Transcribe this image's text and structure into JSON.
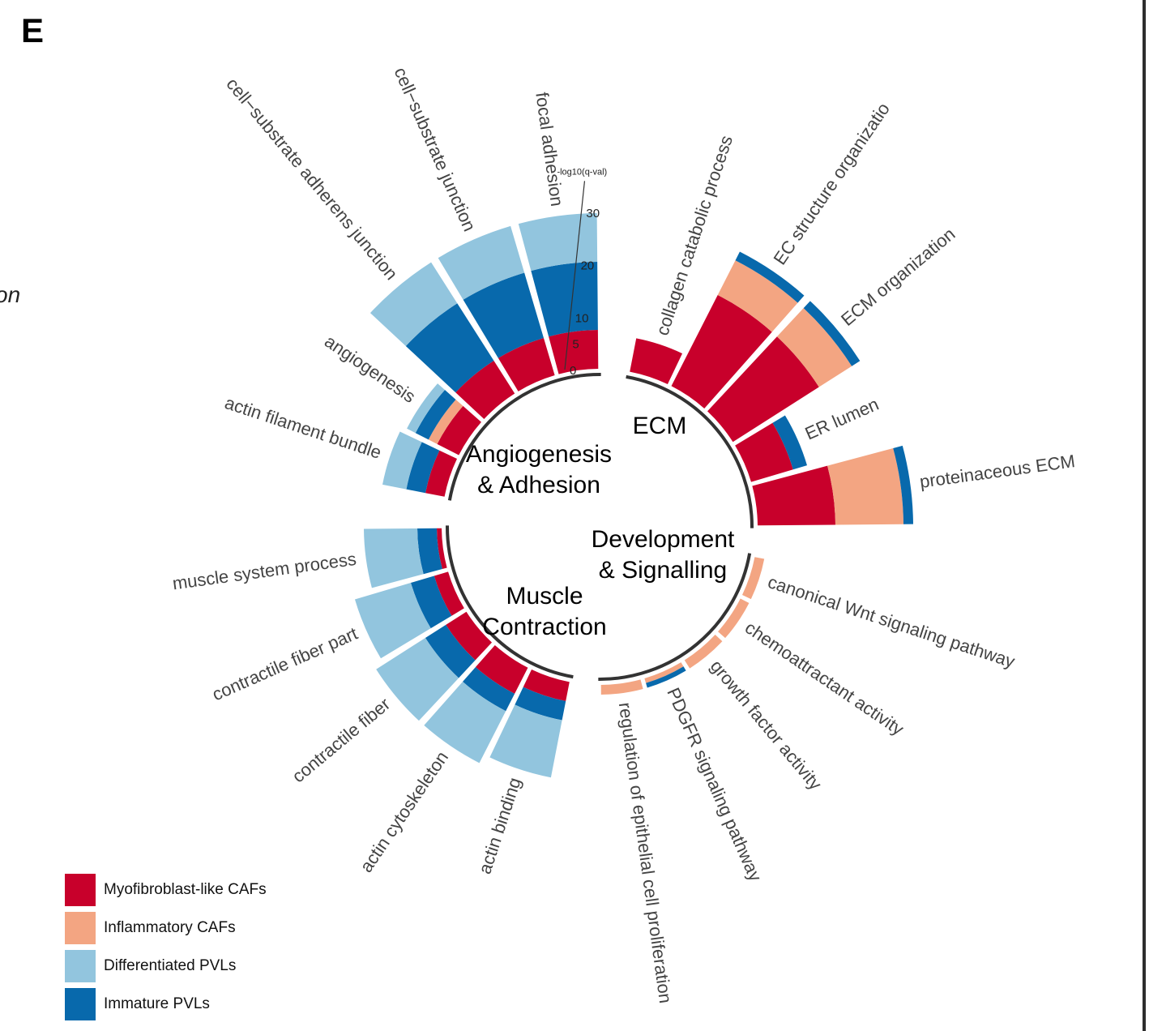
{
  "panel_label": "E",
  "clipped_left_text": "on",
  "colors": {
    "myofibroblast": "#c8002b",
    "inflammatory": "#f3a582",
    "differentiated": "#92c5de",
    "immature": "#0869ac",
    "text": "#444444",
    "arc": "#333333"
  },
  "legend": [
    {
      "label": "Myofibroblast-like CAFs",
      "color": "#c8002b"
    },
    {
      "label": "Inflammatory CAFs",
      "color": "#f3a582"
    },
    {
      "label": "Differentiated PVLs",
      "color": "#92c5de"
    },
    {
      "label": "Immature PVLs",
      "color": "#0869ac"
    }
  ],
  "chart_data": {
    "type": "circular stacked bar",
    "axis": {
      "label": "-log10(q-val)",
      "ticks": [
        0,
        5,
        10,
        20,
        30
      ]
    },
    "series": [
      {
        "name": "Myofibroblast-like CAFs",
        "key": "myo"
      },
      {
        "name": "Inflammatory CAFs",
        "key": "infl"
      },
      {
        "name": "Immature PVLs",
        "key": "imm"
      },
      {
        "name": "Differentiated PVLs",
        "key": "diff"
      }
    ],
    "groups": [
      {
        "label_lines": [
          "Angiogenesis",
          "& Adhesion"
        ],
        "bars": [
          {
            "term": "actin filament bundle",
            "myo": 4,
            "infl": 0,
            "imm": 4,
            "diff": 5
          },
          {
            "term": "angiogenesis",
            "myo": 5,
            "infl": 2,
            "imm": 3,
            "diff": 2
          },
          {
            "term": "cell−substrate adherens junction",
            "myo": 8,
            "infl": 0,
            "imm": 14,
            "diff": 10
          },
          {
            "term": "cell−substrate junction",
            "myo": 8,
            "infl": 0,
            "imm": 14,
            "diff": 10
          },
          {
            "term": "focal adhesion",
            "myo": 8,
            "infl": 0,
            "imm": 14,
            "diff": 10
          }
        ]
      },
      {
        "label_lines": [
          "ECM"
        ],
        "bars": [
          {
            "term": "collagen catabolic process",
            "myo": 7,
            "infl": 0,
            "imm": 0,
            "diff": 0
          },
          {
            "term": "EC structure organizatio",
            "myo": 21,
            "infl": 8,
            "imm": 2,
            "diff": 0
          },
          {
            "term": "ECM organization",
            "myo": 21,
            "infl": 8,
            "imm": 2,
            "diff": 0
          },
          {
            "term": "ER lumen",
            "myo": 9,
            "infl": 0,
            "imm": 3,
            "diff": 0
          },
          {
            "term": "proteinaceous ECM",
            "myo": 16,
            "infl": 14,
            "imm": 2,
            "diff": 0
          }
        ]
      },
      {
        "label_lines": [
          "Development",
          "& Signalling"
        ],
        "bars": [
          {
            "term": "canonical Wnt signaling pathway",
            "myo": 0,
            "infl": 2,
            "imm": 0,
            "diff": 0
          },
          {
            "term": "chemoattractant activity",
            "myo": 0,
            "infl": 2,
            "imm": 0,
            "diff": 0
          },
          {
            "term": "growth factor activity",
            "myo": 0,
            "infl": 2,
            "imm": 0,
            "diff": 0
          },
          {
            "term": "PDGFR signaling pathway",
            "myo": 0,
            "infl": 1,
            "imm": 1,
            "diff": 0
          },
          {
            "term": "regulation of epithelial cell proliferation",
            "myo": 0,
            "infl": 2,
            "imm": 0,
            "diff": 0
          }
        ]
      },
      {
        "label_lines": [
          "Muscle",
          "Contraction"
        ],
        "bars": [
          {
            "term": "actin binding",
            "myo": 4,
            "infl": 0,
            "imm": 4,
            "diff": 12
          },
          {
            "term": "actin cytoskeleton",
            "myo": 6,
            "infl": 0,
            "imm": 4,
            "diff": 12
          },
          {
            "term": "contractile fiber",
            "myo": 5,
            "infl": 0,
            "imm": 5,
            "diff": 12
          },
          {
            "term": "contractile fiber part",
            "myo": 3,
            "infl": 0,
            "imm": 5,
            "diff": 12
          },
          {
            "term": "muscle system process",
            "myo": 1,
            "infl": 0,
            "imm": 4,
            "diff": 11
          }
        ]
      }
    ]
  }
}
